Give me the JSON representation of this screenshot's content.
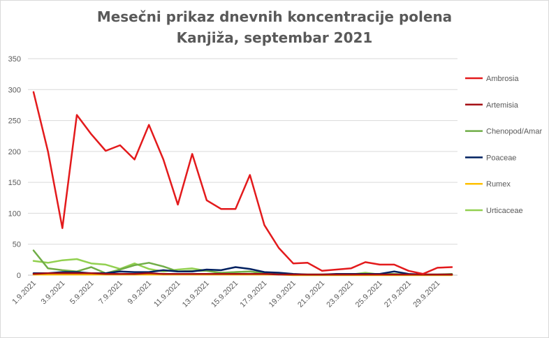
{
  "chart_data": {
    "type": "line",
    "title": "Mesečni prikaz dnevnih koncentracije polena",
    "subtitle": "Kanjiža, septembar 2021",
    "ylim": [
      0,
      350
    ],
    "yticks": [
      0,
      50,
      100,
      150,
      200,
      250,
      300,
      350
    ],
    "grid": true,
    "legend_position": "right",
    "x": [
      "1.9.2021",
      "2.9.2021",
      "3.9.2021",
      "4.9.2021",
      "5.9.2021",
      "6.9.2021",
      "7.9.2021",
      "8.9.2021",
      "9.9.2021",
      "10.9.2021",
      "11.9.2021",
      "12.9.2021",
      "13.9.2021",
      "14.9.2021",
      "15.9.2021",
      "16.9.2021",
      "17.9.2021",
      "18.9.2021",
      "19.9.2021",
      "20.9.2021",
      "21.9.2021",
      "22.9.2021",
      "23.9.2021",
      "24.9.2021",
      "25.9.2021",
      "26.9.2021",
      "27.9.2021",
      "28.9.2021",
      "29.9.2021",
      "30.9.2021"
    ],
    "x_tick_labels": [
      "1.9.2021",
      "3.9.2021",
      "5.9.2021",
      "7.9.2021",
      "9.9.2021",
      "11.9.2021",
      "13.9.2021",
      "15.9.2021",
      "17.9.2021",
      "19.9.2021",
      "21.9.2021",
      "23.9.2021",
      "25.9.2021",
      "27.9.2021",
      "29.9.2021"
    ],
    "series": [
      {
        "name": "Ambrosia",
        "color": "#e31a1c",
        "values": [
          296,
          200,
          76,
          259,
          228,
          201,
          210,
          187,
          243,
          187,
          114,
          196,
          121,
          107,
          107,
          162,
          81,
          44,
          19,
          20,
          7,
          9,
          11,
          21,
          17,
          17,
          7,
          2,
          12,
          13
        ]
      },
      {
        "name": "Artemisia",
        "color": "#a50f15",
        "values": [
          2,
          3,
          3,
          3,
          3,
          2,
          2,
          2,
          3,
          2,
          2,
          2,
          2,
          2,
          2,
          2,
          2,
          1,
          1,
          1,
          1,
          1,
          1,
          1,
          1,
          1,
          1,
          1,
          1,
          1
        ]
      },
      {
        "name": "Chenopod/Amar",
        "color": "#70ad47",
        "values": [
          40,
          11,
          8,
          6,
          13,
          3,
          9,
          16,
          20,
          14,
          6,
          7,
          7,
          4,
          5,
          6,
          3,
          2,
          1,
          1,
          1,
          1,
          1,
          2,
          2,
          2,
          1,
          1,
          1,
          2
        ]
      },
      {
        "name": "Poaceae",
        "color": "#002060",
        "values": [
          3,
          3,
          5,
          5,
          3,
          3,
          6,
          5,
          5,
          8,
          6,
          6,
          9,
          8,
          13,
          10,
          5,
          4,
          2,
          1,
          1,
          2,
          2,
          2,
          2,
          6,
          2,
          1,
          1,
          1
        ]
      },
      {
        "name": "Rumex",
        "color": "#ffc000",
        "values": [
          1,
          1,
          1,
          1,
          1,
          1,
          1,
          1,
          1,
          1,
          1,
          1,
          1,
          1,
          1,
          1,
          1,
          1,
          0,
          0,
          0,
          0,
          0,
          0,
          0,
          0,
          0,
          0,
          0,
          0
        ]
      },
      {
        "name": "Urticaceae",
        "color": "#92d050",
        "values": [
          23,
          20,
          24,
          26,
          19,
          17,
          10,
          19,
          10,
          6,
          9,
          11,
          7,
          3,
          5,
          6,
          3,
          1,
          1,
          1,
          1,
          1,
          1,
          4,
          1,
          1,
          1,
          1,
          1,
          1
        ]
      }
    ]
  }
}
